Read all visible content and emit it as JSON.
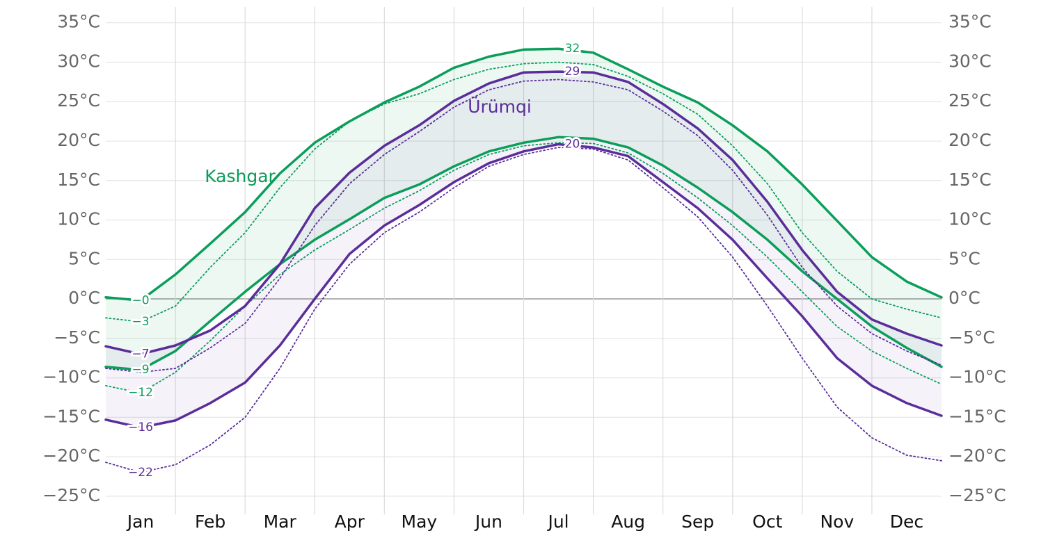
{
  "chart_data": {
    "type": "line",
    "categories": [
      null,
      "Jan",
      null,
      "Feb",
      null,
      "Mar",
      null,
      "Apr",
      null,
      "May",
      null,
      "Jun",
      null,
      "Jul",
      null,
      "Aug",
      null,
      "Sep",
      null,
      "Oct",
      null,
      "Nov",
      null,
      "Dec",
      null
    ],
    "ylim": [
      -27.3,
      37
    ],
    "yticks": [
      {
        "value": -25,
        "label": "−25°C"
      },
      {
        "value": -20,
        "label": "−20°C"
      },
      {
        "value": -15,
        "label": "−15°C"
      },
      {
        "value": -10,
        "label": "−10°C"
      },
      {
        "value": -5,
        "label": "−5°C"
      },
      {
        "value": 0,
        "label": "0°C"
      },
      {
        "value": 5,
        "label": "5°C"
      },
      {
        "value": 10,
        "label": "10°C"
      },
      {
        "value": 15,
        "label": "15°C"
      },
      {
        "value": 20,
        "label": "20°C"
      },
      {
        "value": 25,
        "label": "25°C"
      },
      {
        "value": 30,
        "label": "30°C"
      },
      {
        "value": 35,
        "label": "35°C"
      }
    ],
    "y2lim": [
      -27.3,
      37
    ],
    "y2ticks": [
      {
        "value": -25,
        "label": "−25°C"
      },
      {
        "value": -20,
        "label": "−20°C"
      },
      {
        "value": -15,
        "label": "−15°C"
      },
      {
        "value": -10,
        "label": "−10°C"
      },
      {
        "value": -5,
        "label": "−5°C"
      },
      {
        "value": 0,
        "label": "0°C"
      },
      {
        "value": 5,
        "label": "5°C"
      },
      {
        "value": 10,
        "label": "10°C"
      },
      {
        "value": 15,
        "label": "15°C"
      },
      {
        "value": 20,
        "label": "20°C"
      },
      {
        "value": 25,
        "label": "25°C"
      },
      {
        "value": 30,
        "label": "30°C"
      },
      {
        "value": 35,
        "label": "35°C"
      }
    ],
    "grid": true,
    "series": [
      {
        "name": "Kashgar",
        "color": "#0a9e5a",
        "band_color": "rgba(10,158,90,0.07)",
        "lines": [
          {
            "style": "solid",
            "values": [
              0.2,
              -0.2,
              3.1,
              7,
              11,
              15.9,
              19.8,
              22.5,
              24.9,
              26.9,
              29.3,
              30.7,
              31.6,
              31.7,
              31.2,
              29.1,
              26.9,
              24.9,
              22,
              18.7,
              14.5,
              9.9,
              5.3,
              2.2,
              0.2
            ],
            "value_labels": [
              null,
              "−0",
              null,
              null,
              null,
              null,
              null,
              null,
              null,
              null,
              null,
              null,
              null,
              "32",
              null,
              null,
              null,
              null,
              null,
              null,
              null,
              null,
              null,
              null,
              null
            ]
          },
          {
            "style": "solid",
            "values": [
              -8.6,
              -9,
              -6.6,
              -2.8,
              0.9,
              4.4,
              7.5,
              10.1,
              12.8,
              14.5,
              16.8,
              18.7,
              19.8,
              20.5,
              20.3,
              19.2,
              16.9,
              14.1,
              11,
              7.5,
              3.5,
              0,
              -3.5,
              -6.2,
              -8.6
            ],
            "value_labels": [
              null,
              "−9",
              null,
              null,
              null,
              null,
              null,
              null,
              null,
              null,
              null,
              null,
              null,
              null,
              null,
              null,
              null,
              null,
              null,
              null,
              null,
              null,
              null,
              null,
              null
            ]
          },
          {
            "style": "dotted",
            "values": [
              -2.4,
              -2.9,
              -0.9,
              4,
              8.4,
              14.1,
              19,
              22.5,
              24.7,
              26,
              27.8,
              29.1,
              29.8,
              30,
              29.7,
              28.2,
              26,
              23.4,
              19.4,
              14.6,
              8.4,
              3.5,
              0,
              -1.3,
              -2.4
            ],
            "value_labels": [
              null,
              "−3",
              null,
              null,
              null,
              null,
              null,
              null,
              null,
              null,
              null,
              null,
              null,
              null,
              null,
              null,
              null,
              null,
              null,
              null,
              null,
              null,
              null,
              null,
              null
            ]
          },
          {
            "style": "dotted",
            "values": [
              -11,
              -11.9,
              -9.3,
              -5.3,
              -0.9,
              3.1,
              6.2,
              8.8,
              11.5,
              13.7,
              16.3,
              18.3,
              19.4,
              19.8,
              19.7,
              18.5,
              15.9,
              12.8,
              9.3,
              5.3,
              0.9,
              -3.5,
              -6.6,
              -8.8,
              -10.8
            ],
            "value_labels": [
              null,
              "−12",
              null,
              null,
              null,
              null,
              null,
              null,
              null,
              null,
              null,
              null,
              null,
              null,
              null,
              null,
              null,
              null,
              null,
              null,
              null,
              null,
              null,
              null,
              null
            ]
          }
        ]
      },
      {
        "name": "Ürümqi",
        "color": "#5b2d9a",
        "band_color": "rgba(91,45,154,0.06)",
        "lines": [
          {
            "style": "solid",
            "values": [
              -6,
              -7,
              -5.9,
              -4,
              -0.9,
              4.4,
              11.5,
              16,
              19.4,
              22,
              25.1,
              27.3,
              28.7,
              28.8,
              28.7,
              27.5,
              24.7,
              21.6,
              17.6,
              12.3,
              6.2,
              0.9,
              -2.6,
              -4.4,
              -5.9
            ],
            "value_labels": [
              null,
              "−7",
              null,
              null,
              null,
              null,
              null,
              null,
              null,
              null,
              null,
              null,
              null,
              "29",
              null,
              null,
              null,
              null,
              null,
              null,
              null,
              null,
              null,
              null,
              null
            ]
          },
          {
            "style": "solid",
            "values": [
              -15.3,
              -16.3,
              -15.4,
              -13.2,
              -10.6,
              -5.9,
              0,
              5.7,
              9.3,
              11.9,
              14.8,
              17.2,
              18.7,
              19.6,
              19.2,
              18.1,
              14.8,
              11.5,
              7.5,
              2.6,
              -2.2,
              -7.5,
              -11,
              -13.2,
              -14.8
            ],
            "value_labels": [
              null,
              "−16",
              null,
              null,
              null,
              null,
              null,
              null,
              null,
              null,
              null,
              null,
              null,
              "20",
              null,
              null,
              null,
              null,
              null,
              null,
              null,
              null,
              null,
              null,
              null
            ]
          },
          {
            "style": "dotted",
            "values": [
              -8.8,
              -9.3,
              -8.8,
              -6.2,
              -3.1,
              2.6,
              9.3,
              14.6,
              18.3,
              21.2,
              24.3,
              26.5,
              27.6,
              27.8,
              27.5,
              26.5,
              23.8,
              20.7,
              16.3,
              10.6,
              4,
              -0.9,
              -4.4,
              -6.6,
              -8.4
            ]
          },
          {
            "style": "dotted",
            "values": [
              -20.7,
              -22,
              -21,
              -18.5,
              -15,
              -8.8,
              -1.3,
              4.4,
              8.4,
              11,
              14.1,
              16.8,
              18.3,
              19.2,
              19,
              17.6,
              14.1,
              10.4,
              5.3,
              -0.9,
              -7.5,
              -13.7,
              -17.6,
              -19.8,
              -20.5
            ],
            "value_labels": [
              null,
              "−22",
              null,
              null,
              null,
              null,
              null,
              null,
              null,
              null,
              null,
              null,
              null,
              null,
              null,
              null,
              null,
              null,
              null,
              null,
              null,
              null,
              null,
              null,
              null
            ]
          }
        ]
      }
    ]
  }
}
